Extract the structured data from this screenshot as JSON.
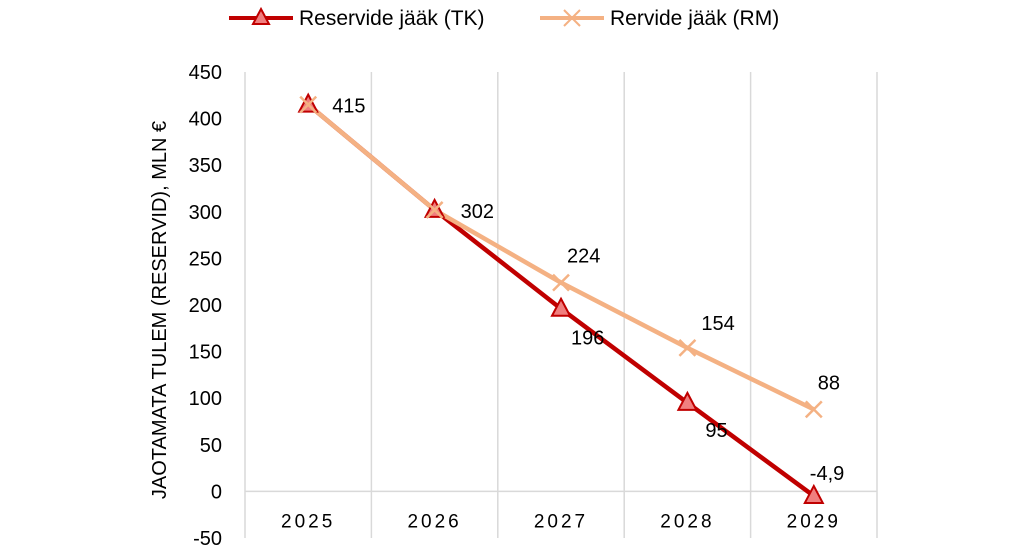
{
  "colors": {
    "series_tk": "#C00000",
    "series_tk_marker_fill": "#F07F7F",
    "series_rm": "#F4B183",
    "grid": "#D9D9D9"
  },
  "chart_data": {
    "type": "line",
    "categories": [
      "2025",
      "2026",
      "2027",
      "2028",
      "2029"
    ],
    "ylabel": "JAOTAMATA TULEM (RESERVID), MLN €",
    "ylim": [
      -50,
      450
    ],
    "yticks": [
      -50,
      0,
      50,
      100,
      150,
      200,
      250,
      300,
      350,
      400,
      450
    ],
    "grid": "vertical",
    "legend": "top-center",
    "series": [
      {
        "name": "Reservide jääk (TK)",
        "values": [
          415,
          302,
          196,
          95,
          -4.9
        ],
        "labels": [
          "415",
          "302",
          "196",
          "95",
          "-4,9"
        ],
        "marker": "triangle"
      },
      {
        "name": "Rervide jääk (RM)",
        "values": [
          415,
          302,
          224,
          154,
          88
        ],
        "labels": [
          "",
          "",
          "224",
          "154",
          "88"
        ],
        "marker": "x"
      }
    ]
  }
}
